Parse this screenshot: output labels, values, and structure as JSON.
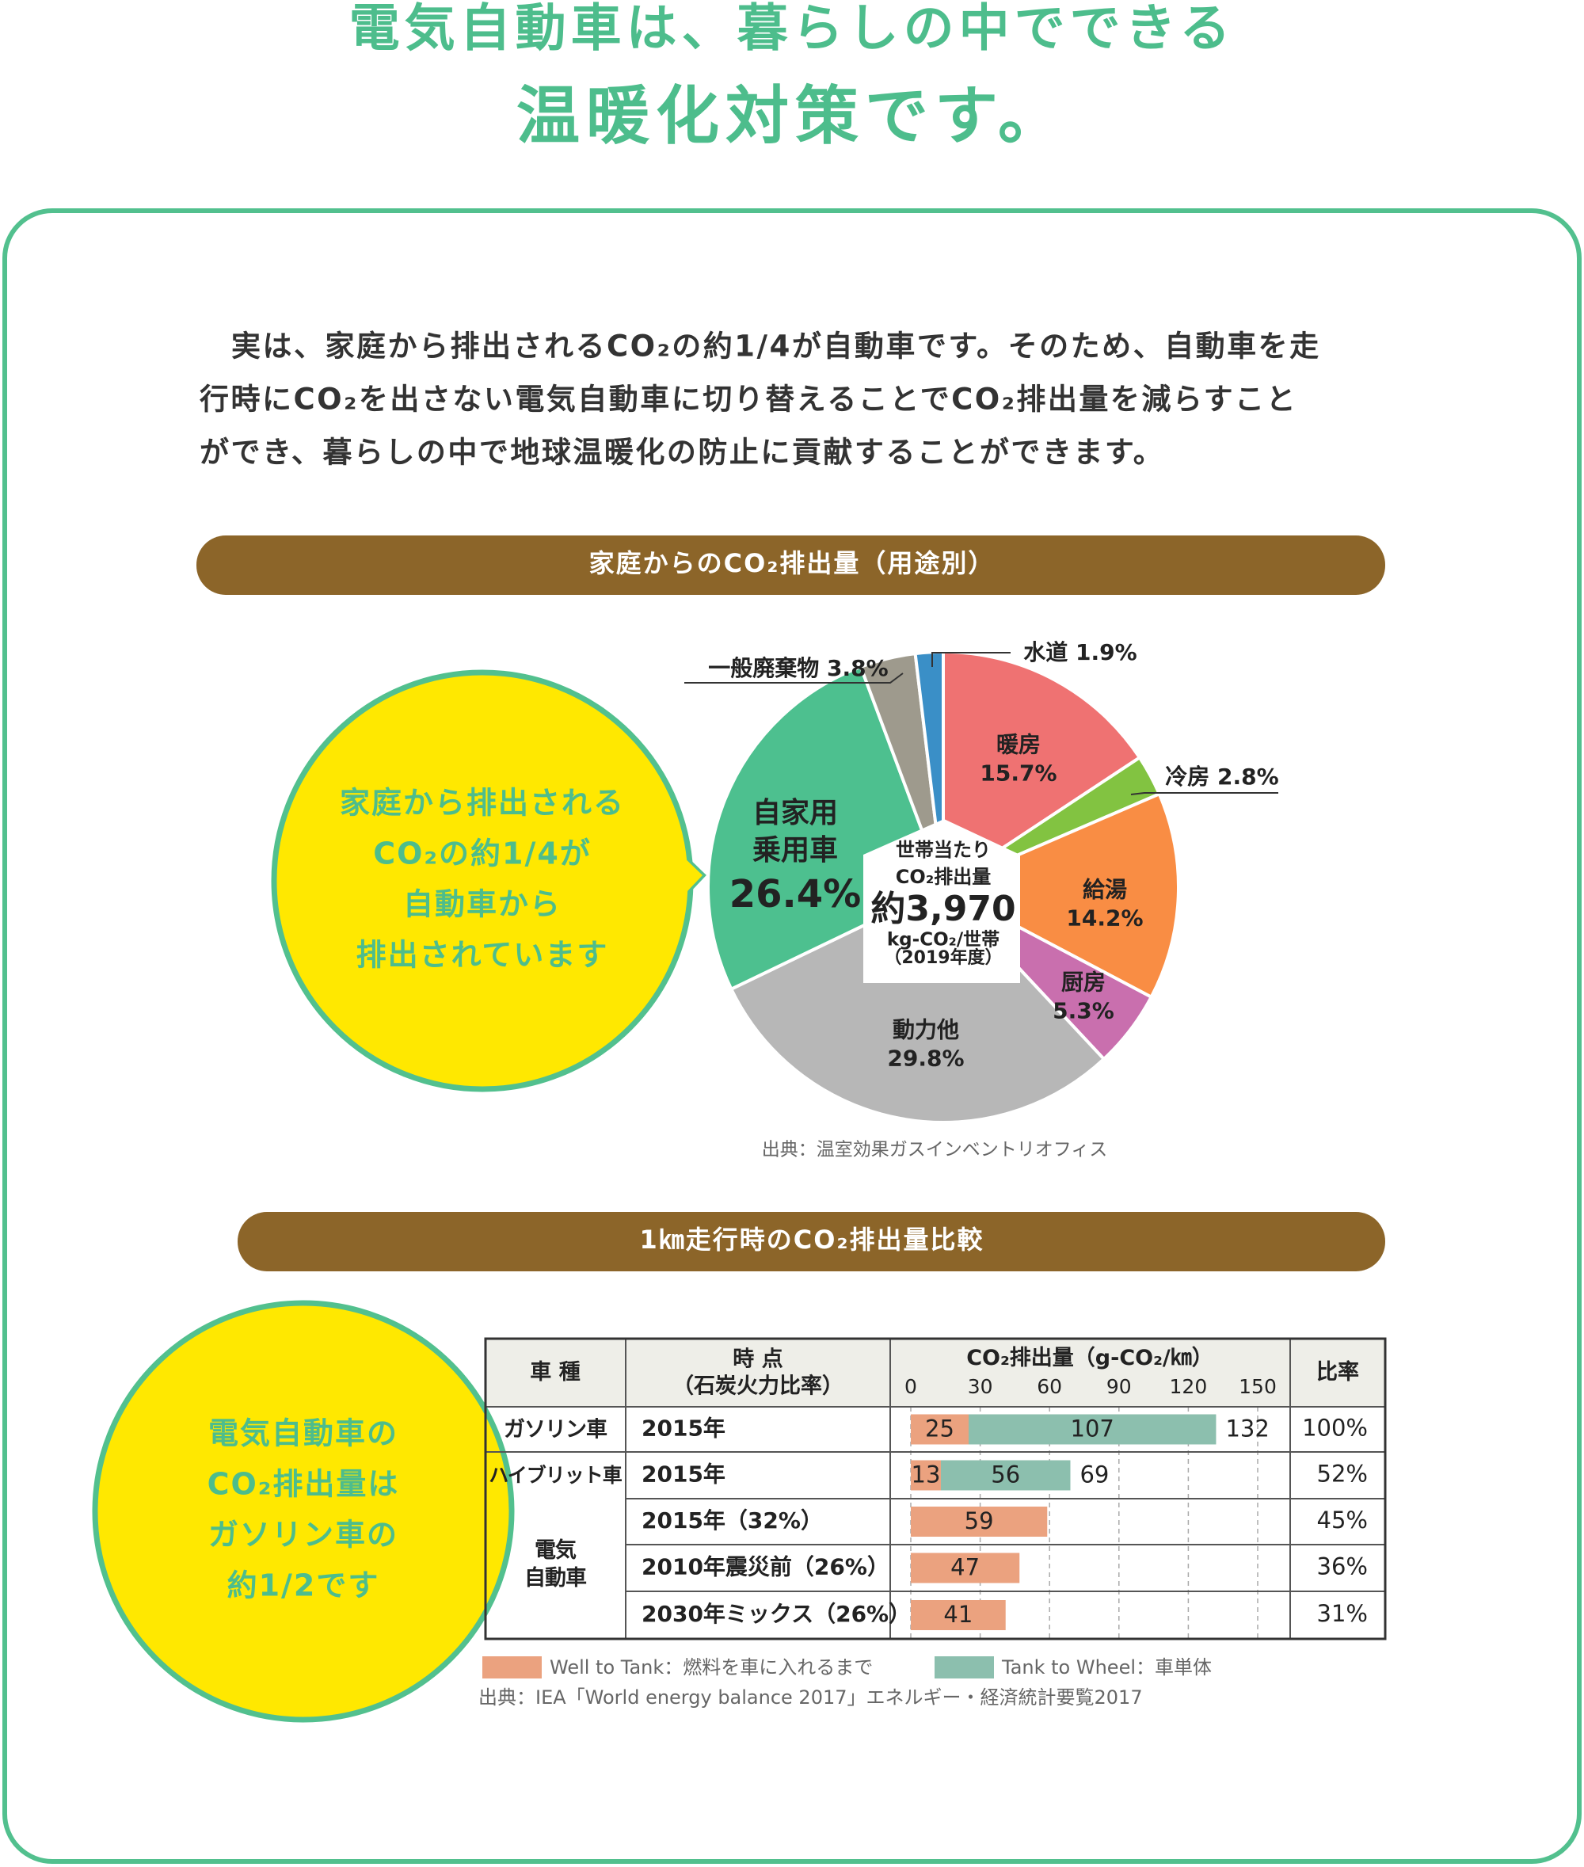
{
  "header": {
    "title_lines": [
      "電気自動車は、暮らしの中でできる",
      "温暖化対策です。"
    ]
  },
  "intro": {
    "lines": [
      "実は、家庭から排出されるCO₂の約1/4が自動車です。そのため、自動車を走",
      "行時にCO₂を出さない電気自動車に切り替えることでCO₂排出量を減らすこと",
      "ができ、暮らしの中で地球温暖化の防止に貢献することができます。"
    ]
  },
  "callouts": [
    {
      "lines": [
        "家庭から排出される",
        "CO₂の約1/4が",
        "自動車から",
        "排出されています"
      ]
    },
    {
      "lines": [
        "電気自動車の",
        "CO₂排出量は",
        "ガソリン車の",
        "約1/2です"
      ]
    }
  ],
  "chart_data": [
    {
      "type": "pie",
      "title": "家庭からのCO₂排出量（用途別）",
      "categories": [
        "暖房",
        "冷房",
        "給湯",
        "厨房",
        "動力他",
        "自家用\n乗用車",
        "一般廃棄物",
        "水道"
      ],
      "values": [
        15.7,
        2.8,
        14.2,
        5.3,
        29.8,
        26.4,
        3.8,
        1.9
      ],
      "value_labels": [
        "15.7%",
        "2.8%",
        "14.2%",
        "5.3%",
        "29.8%",
        "26.4%",
        "3.8%",
        "1.9%"
      ],
      "colors": [
        "#ef7272",
        "#82c341",
        "#f98d44",
        "#c96fae",
        "#b7b7b7",
        "#4dc08f",
        "#9e9a8d",
        "#3a8fc7"
      ],
      "center_lines": [
        "世帯当たり",
        "CO₂排出量",
        "約3,970",
        "kg-CO₂/世帯",
        "（2019年度）"
      ],
      "source": "出典：温室効果ガスインベントリオフィス"
    },
    {
      "type": "bar",
      "title": "1㎞走行時のCO₂排出量比較",
      "columns": [
        "車 種",
        "時 点\n（石炭火力比率）",
        "CO₂排出量（g-CO₂/㎞）",
        "比率"
      ],
      "vehicles": [
        "ガソリン車",
        "ハイブリット車",
        null,
        "電気\n自動車",
        null
      ],
      "categories": [
        "2015年",
        "2015年",
        "2015年（32%）",
        "2010年震災前（26%）",
        "2030年ミックス（26%）"
      ],
      "series": [
        {
          "name": "Well to Tank：燃料を車に入れるまで",
          "color": "#eba27f",
          "values": [
            25,
            13,
            59,
            47,
            41
          ]
        },
        {
          "name": "Tank to Wheel：車単体",
          "color": "#8cbfae",
          "values": [
            107,
            56,
            null,
            null,
            null
          ]
        }
      ],
      "totals": [
        132,
        69,
        null,
        null,
        null
      ],
      "ratios": [
        "100%",
        "52%",
        "45%",
        "36%",
        "31%"
      ],
      "xlim": [
        0,
        150
      ],
      "xticks": [
        0,
        30,
        60,
        90,
        120,
        150
      ],
      "grid": true,
      "source": "出典：IEA「World energy balance 2017」エネルギー・経済統計要覧2017"
    }
  ]
}
